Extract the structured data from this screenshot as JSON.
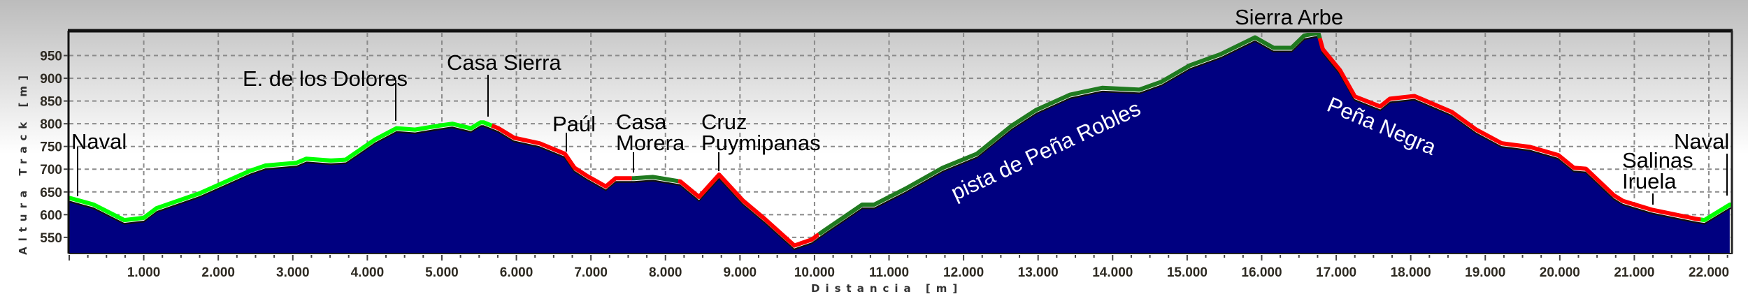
{
  "chart_data": {
    "type": "area",
    "xlabel": "Distancia [m]",
    "ylabel": "Altura Track [m]",
    "xlim": [
      0,
      22300
    ],
    "ylim": [
      516,
      1000
    ],
    "grid": true,
    "x_ticks": [
      1000,
      2000,
      3000,
      4000,
      5000,
      6000,
      7000,
      8000,
      9000,
      10000,
      11000,
      12000,
      13000,
      14000,
      15000,
      16000,
      17000,
      18000,
      19000,
      20000,
      21000,
      22000
    ],
    "x_tick_labels": [
      "1.000",
      "2.000",
      "3.000",
      "4.000",
      "5.000",
      "6.000",
      "7.000",
      "8.000",
      "9.000",
      "10.000",
      "11.000",
      "12.000",
      "13.000",
      "14.000",
      "15.000",
      "16.000",
      "17.000",
      "18.000",
      "19.000",
      "20.000",
      "21.000",
      "22.000"
    ],
    "y_ticks": [
      550,
      600,
      650,
      700,
      750,
      800,
      850,
      900,
      950
    ],
    "y_tick_labels": [
      "550",
      "600",
      "650",
      "700",
      "750",
      "800",
      "850",
      "900",
      "950"
    ],
    "fill_color": "#000080",
    "x": [
      0,
      330,
      740,
      1000,
      1170,
      1750,
      2420,
      2630,
      3050,
      3180,
      3510,
      3710,
      4100,
      4390,
      4640,
      4930,
      5140,
      5390,
      5520,
      5560,
      5760,
      5970,
      6310,
      6650,
      6780,
      6950,
      7200,
      7330,
      7580,
      7830,
      8200,
      8450,
      8720,
      9040,
      9330,
      9730,
      9960,
      10130,
      10640,
      10800,
      11220,
      11720,
      12180,
      12640,
      12970,
      13430,
      13860,
      14360,
      14650,
      15030,
      15450,
      15910,
      16160,
      16400,
      16570,
      16760,
      16820,
      17050,
      17250,
      17590,
      17720,
      18050,
      18550,
      18880,
      19220,
      19600,
      19980,
      20190,
      20350,
      20730,
      20850,
      21230,
      21820,
      21940,
      22280
    ],
    "y": [
      637,
      622,
      588,
      593,
      614,
      647,
      696,
      708,
      714,
      723,
      719,
      721,
      765,
      790,
      787,
      795,
      800,
      790,
      803,
      803,
      790,
      769,
      757,
      734,
      703,
      685,
      662,
      680,
      680,
      683,
      673,
      639,
      688,
      631,
      591,
      532,
      545,
      565,
      622,
      622,
      657,
      703,
      734,
      795,
      830,
      864,
      879,
      875,
      892,
      928,
      953,
      990,
      967,
      967,
      994,
      1000,
      964,
      918,
      860,
      838,
      855,
      861,
      826,
      787,
      757,
      749,
      731,
      703,
      701,
      642,
      630,
      611,
      591,
      588,
      622
    ],
    "segments": [
      {
        "from": 0,
        "to": 5670,
        "color": "#00ff00"
      },
      {
        "from": 5670,
        "to": 7550,
        "color": "#ff0000"
      },
      {
        "from": 7550,
        "to": 8170,
        "color": "#1f7a1f"
      },
      {
        "from": 8170,
        "to": 10060,
        "color": "#ff0000"
      },
      {
        "from": 10060,
        "to": 16780,
        "color": "#1f7a1f"
      },
      {
        "from": 16780,
        "to": 21890,
        "color": "#ff0000"
      },
      {
        "from": 21890,
        "to": 22300,
        "color": "#00ff00"
      }
    ],
    "annotations": [
      {
        "lines": [
          "Naval"
        ],
        "at": 100
      },
      {
        "lines": [
          "E. de los Dolores"
        ],
        "at": 4400
      },
      {
        "lines": [
          "Casa Sierra"
        ],
        "at": 5600
      },
      {
        "lines": [
          "Paúl"
        ],
        "at": 6660
      },
      {
        "lines": [
          "Casa",
          "Morera"
        ],
        "at": 7570
      },
      {
        "lines": [
          "Cruz",
          "Puymipanas"
        ],
        "at": 8720
      },
      {
        "lines": [
          "Sierra Arbe"
        ],
        "at": 16700
      },
      {
        "lines": [
          "pista de Peña Robles"
        ],
        "at": 12500
      },
      {
        "lines": [
          "Peña Negra"
        ],
        "at": 17600
      },
      {
        "lines": [
          "Salinas",
          "Iruela"
        ],
        "at": 21220
      },
      {
        "lines": [
          "Naval"
        ],
        "at": 22250
      }
    ]
  }
}
